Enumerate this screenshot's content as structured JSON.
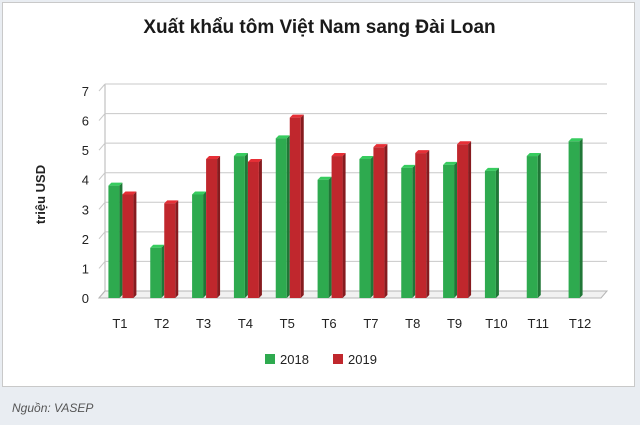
{
  "chart_data": {
    "type": "bar",
    "title": "Xuất khẩu tôm Việt Nam sang Đài Loan",
    "ylabel": "triệu USD",
    "xlabel": "",
    "ylim": [
      0,
      7
    ],
    "yticks": [
      0,
      1,
      2,
      3,
      4,
      5,
      6,
      7
    ],
    "grid": true,
    "legend_position": "bottom",
    "categories": [
      "T1",
      "T2",
      "T3",
      "T4",
      "T5",
      "T6",
      "T7",
      "T8",
      "T9",
      "T10",
      "T11",
      "T12"
    ],
    "series": [
      {
        "name": "2018",
        "color": "#2eaa4f",
        "values": [
          3.8,
          1.7,
          3.5,
          4.8,
          5.4,
          4.0,
          4.7,
          4.4,
          4.5,
          4.3,
          4.8,
          5.3
        ]
      },
      {
        "name": "2019",
        "color": "#c0272d",
        "values": [
          3.5,
          3.2,
          4.7,
          4.6,
          6.1,
          4.8,
          5.1,
          4.9,
          5.2,
          null,
          null,
          null
        ]
      }
    ]
  },
  "source": "Nguồn: VASEP"
}
